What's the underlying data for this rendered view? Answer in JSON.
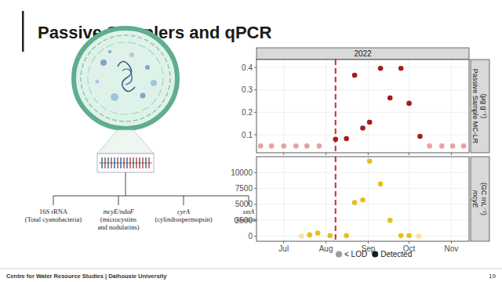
{
  "header": {
    "title": "Passive Samplers and qPCR"
  },
  "diagram": {
    "targets": [
      {
        "gene": "16S rRNA",
        "description": [
          "(Total cyanobacteria)"
        ]
      },
      {
        "gene": "mcyE/ndaF",
        "description": [
          "(microcystins",
          "and nodularins)"
        ]
      },
      {
        "gene": "cyrA",
        "description": [
          "(cylindrospermopsin)"
        ]
      },
      {
        "gene": "sxtA",
        "description": [
          "(saxitoxin)"
        ]
      }
    ]
  },
  "chart_data": [
    {
      "type": "scatter",
      "title": "2022",
      "y_label": [
        "Passive Sample MC-LR",
        "(µg g⁻¹)"
      ],
      "x": [
        165,
        173,
        182,
        191,
        199,
        208,
        220,
        228,
        234,
        240,
        245,
        253,
        260,
        268,
        274,
        282,
        289,
        298,
        306,
        314
      ],
      "values": [
        0.05,
        0.05,
        0.05,
        0.05,
        0.05,
        0.05,
        0.08,
        0.083,
        0.365,
        0.13,
        0.156,
        0.396,
        0.264,
        0.396,
        0.24,
        0.093,
        0.05,
        0.05,
        0.05,
        0.05
      ],
      "colors": [
        "#e6a3a3",
        "#e6a3a3",
        "#e6a3a3",
        "#e6a3a3",
        "#e6a3a3",
        "#e6a3a3",
        "#a51c1c",
        "#a51c1c",
        "#a51c1c",
        "#a51c1c",
        "#a51c1c",
        "#a51c1c",
        "#a51c1c",
        "#a51c1c",
        "#a51c1c",
        "#a51c1c",
        "#e6a3a3",
        "#e6a3a3",
        "#e6a3a3",
        "#e6a3a3"
      ],
      "marker": "circle",
      "xlim": [
        162,
        318
      ],
      "ylim": [
        0.02,
        0.435
      ],
      "xticks": [
        182,
        213,
        244,
        274,
        305
      ],
      "yticks": [
        0.1,
        0.2,
        0.3,
        0.4
      ],
      "grid": true,
      "tick_labels": "y",
      "reference_x": 220
    },
    {
      "type": "scatter",
      "y_label": [
        "mcyE",
        "(GC mL⁻¹)"
      ],
      "x": [
        195,
        201,
        207,
        216,
        228,
        234,
        240,
        245,
        253,
        260,
        268,
        274,
        281
      ],
      "values": [
        0,
        200,
        500,
        100,
        100,
        5300,
        5700,
        11800,
        8200,
        2500,
        100,
        100,
        0
      ],
      "colors": [
        "#f3e4a3",
        "#e6bf1e",
        "#e6bf1e",
        "#e6bf1e",
        "#e6bf1e",
        "#e6bf1e",
        "#e6bf1e",
        "#e6bf1e",
        "#e6bf1e",
        "#e6bf1e",
        "#e6bf1e",
        "#e6bf1e",
        "#f3e4a3"
      ],
      "marker": "circle",
      "xlim": [
        162,
        318
      ],
      "ylim": [
        -800,
        12500
      ],
      "xticks": [
        {
          "value": 182,
          "label": "Jul"
        },
        {
          "value": 213,
          "label": "Aug"
        },
        {
          "value": 244,
          "label": "Sep"
        },
        {
          "value": 274,
          "label": "Oct"
        },
        {
          "value": 305,
          "label": "Nov"
        }
      ],
      "yticks": [
        0,
        2500,
        5000,
        7500,
        10000
      ],
      "grid": true,
      "reference_x": 220
    }
  ],
  "shared_legend": {
    "items": [
      {
        "label": "< LOD",
        "color": "#9a9a9a"
      },
      {
        "label": "Detected",
        "color": "#1b1b1b"
      }
    ]
  },
  "footer": {
    "organization": "Centre for Water Resource Studies | Dalhousie University",
    "page": "19"
  }
}
